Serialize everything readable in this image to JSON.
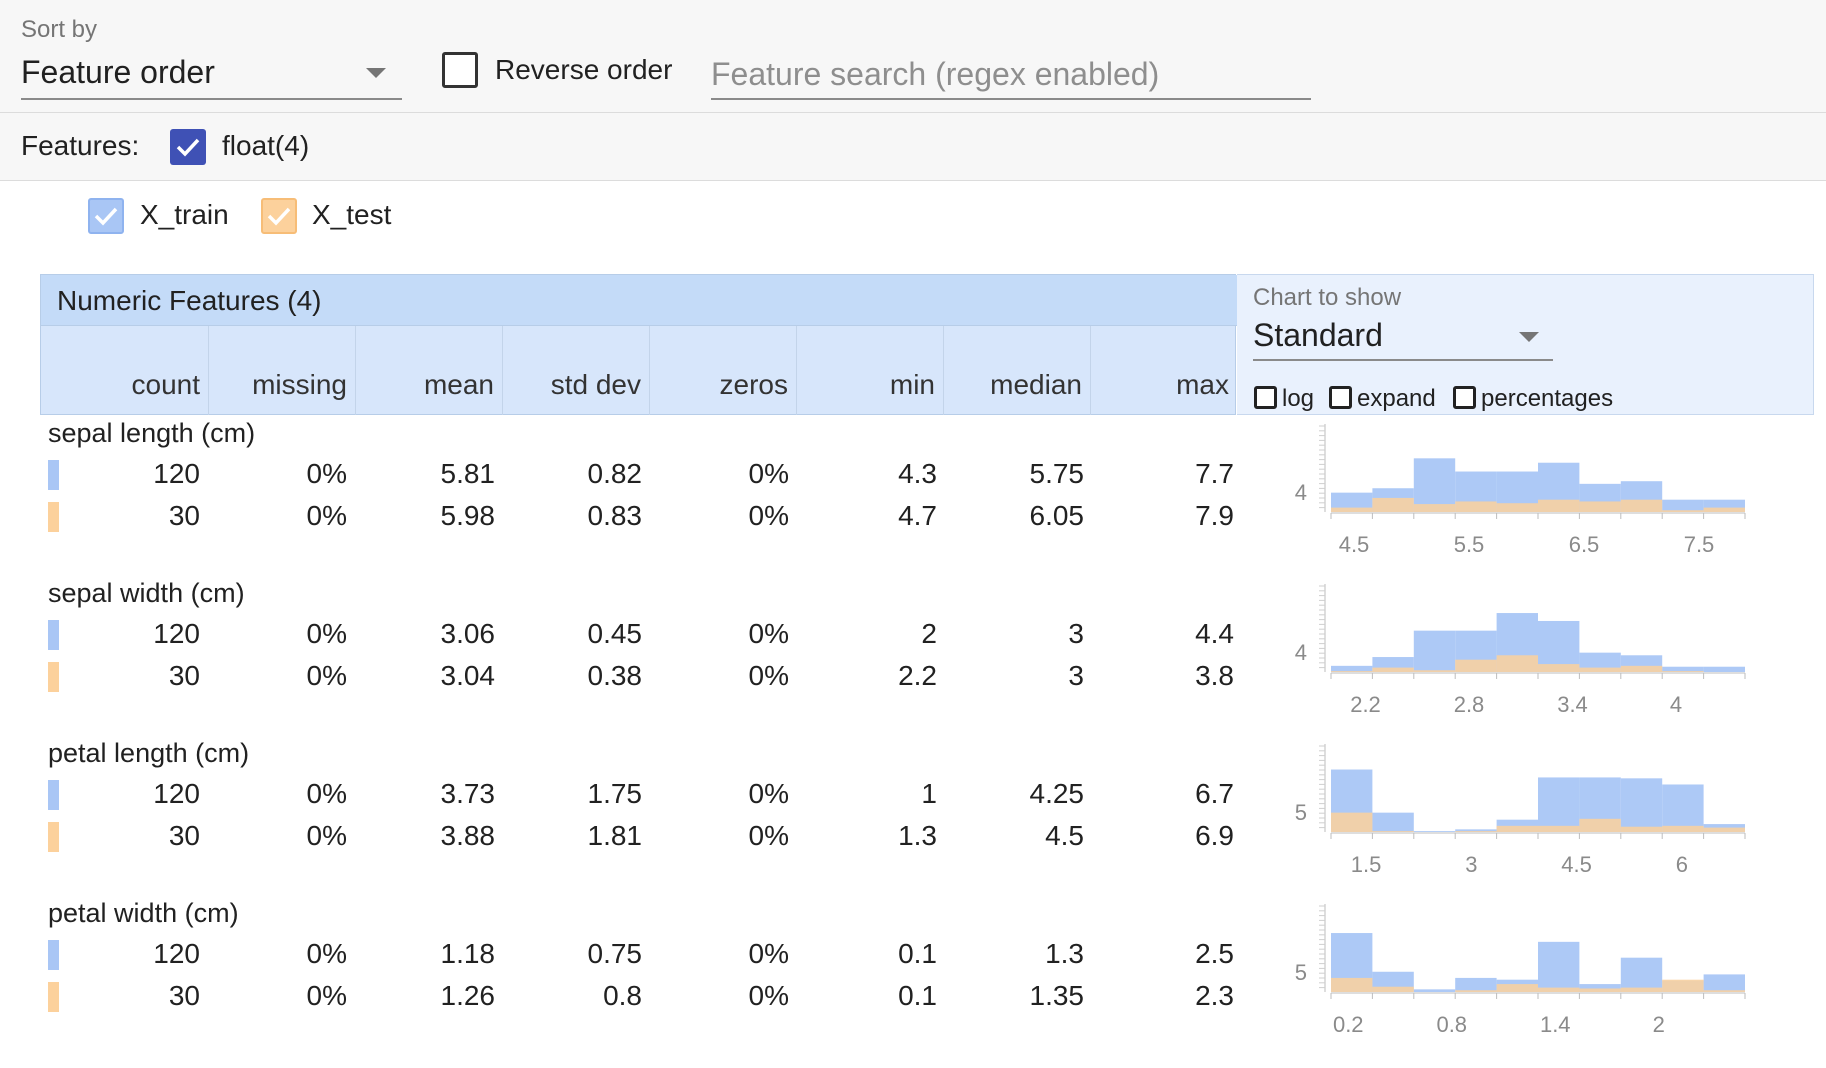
{
  "toolbar": {
    "sort_label": "Sort by",
    "sort_value": "Feature order",
    "reverse_label": "Reverse order",
    "search_placeholder": "Feature search (regex enabled)"
  },
  "features_bar": {
    "label": "Features:",
    "float_label": "float(4)"
  },
  "datasets": [
    {
      "name": "X_train",
      "color": "#a9c6f5"
    },
    {
      "name": "X_test",
      "color": "#fcd19c"
    }
  ],
  "table": {
    "title": "Numeric Features (4)",
    "columns": [
      "count",
      "missing",
      "mean",
      "std dev",
      "zeros",
      "min",
      "median",
      "max"
    ]
  },
  "chart_controls": {
    "label": "Chart to show",
    "value": "Standard",
    "options": [
      "log",
      "expand",
      "percentages"
    ]
  },
  "rows": [
    {
      "name": "sepal length (cm)",
      "train": [
        "120",
        "0%",
        "5.81",
        "0.82",
        "0%",
        "4.3",
        "5.75",
        "7.7"
      ],
      "test": [
        "30",
        "0%",
        "5.98",
        "0.83",
        "0%",
        "4.7",
        "6.05",
        "7.9"
      ]
    },
    {
      "name": "sepal width (cm)",
      "train": [
        "120",
        "0%",
        "3.06",
        "0.45",
        "0%",
        "2",
        "3",
        "4.4"
      ],
      "test": [
        "30",
        "0%",
        "3.04",
        "0.38",
        "0%",
        "2.2",
        "3",
        "3.8"
      ]
    },
    {
      "name": "petal length (cm)",
      "train": [
        "120",
        "0%",
        "3.73",
        "1.75",
        "0%",
        "1",
        "4.25",
        "6.7"
      ],
      "test": [
        "30",
        "0%",
        "3.88",
        "1.81",
        "0%",
        "1.3",
        "4.5",
        "6.9"
      ]
    },
    {
      "name": "petal width (cm)",
      "train": [
        "120",
        "0%",
        "1.18",
        "0.75",
        "0%",
        "0.1",
        "1.3",
        "2.5"
      ],
      "test": [
        "30",
        "0%",
        "1.26",
        "0.8",
        "0%",
        "0.1",
        "1.35",
        "2.3"
      ]
    }
  ],
  "chart_data": [
    {
      "type": "bar",
      "feature": "sepal length (cm)",
      "xlim": [
        4.3,
        7.9
      ],
      "xticks": [
        "4.5",
        "5.5",
        "6.5",
        "7.5"
      ],
      "xtick_values": [
        4.5,
        5.5,
        6.5,
        7.5
      ],
      "ytick_label": "4",
      "bins": 10,
      "series": [
        {
          "name": "X_train",
          "values": [
            0.22,
            0.27,
            0.61,
            0.46,
            0.46,
            0.56,
            0.32,
            0.35,
            0.14,
            0.14
          ]
        },
        {
          "name": "X_test",
          "values": [
            0.05,
            0.16,
            0.09,
            0.12,
            0.1,
            0.14,
            0.12,
            0.14,
            0.02,
            0.05
          ]
        }
      ]
    },
    {
      "type": "bar",
      "feature": "sepal width (cm)",
      "xlim": [
        2.0,
        4.4
      ],
      "xticks": [
        "2.2",
        "2.8",
        "3.4",
        "4"
      ],
      "xtick_values": [
        2.2,
        2.8,
        3.4,
        4.0
      ],
      "ytick_label": "4",
      "bins": 10,
      "series": [
        {
          "name": "X_train",
          "values": [
            0.07,
            0.17,
            0.47,
            0.47,
            0.67,
            0.58,
            0.22,
            0.19,
            0.06,
            0.06
          ]
        },
        {
          "name": "X_test",
          "values": [
            0.01,
            0.05,
            0.02,
            0.14,
            0.19,
            0.09,
            0.05,
            0.07,
            0.01,
            0.0
          ]
        }
      ]
    },
    {
      "type": "bar",
      "feature": "petal length (cm)",
      "xlim": [
        1.0,
        6.9
      ],
      "xticks": [
        "1.5",
        "3",
        "4.5",
        "6"
      ],
      "xtick_values": [
        1.5,
        3.0,
        4.5,
        6.0
      ],
      "ytick_label": "5",
      "bins": 10,
      "series": [
        {
          "name": "X_train",
          "values": [
            0.71,
            0.22,
            0.01,
            0.03,
            0.14,
            0.62,
            0.62,
            0.61,
            0.54,
            0.09
          ]
        },
        {
          "name": "X_test",
          "values": [
            0.22,
            0.01,
            0.0,
            0.01,
            0.07,
            0.07,
            0.15,
            0.06,
            0.07,
            0.05
          ]
        }
      ]
    },
    {
      "type": "bar",
      "feature": "petal width (cm)",
      "xlim": [
        0.1,
        2.5
      ],
      "xticks": [
        "0.2",
        "0.8",
        "1.4",
        "2"
      ],
      "xtick_values": [
        0.2,
        0.8,
        1.4,
        2.0
      ],
      "ytick_label": "5",
      "bins": 10,
      "series": [
        {
          "name": "X_train",
          "values": [
            0.67,
            0.23,
            0.03,
            0.16,
            0.14,
            0.57,
            0.09,
            0.39,
            0.13,
            0.2
          ]
        },
        {
          "name": "X_test",
          "values": [
            0.16,
            0.06,
            0.0,
            0.02,
            0.09,
            0.05,
            0.04,
            0.05,
            0.14,
            0.02
          ]
        }
      ]
    }
  ]
}
